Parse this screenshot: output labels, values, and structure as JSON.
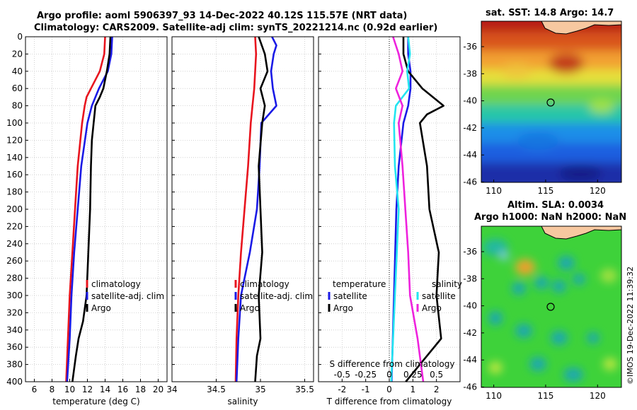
{
  "titles": {
    "line1": "Argo profile: aoml 5906397_93 14-Dec-2022 40.12S 115.57E (NRT data)",
    "line2": "Climatology: CARS2009. Satellite-adj clim: synTS_20221214.nc (0.92d earlier)"
  },
  "maps": {
    "sst_title": "sat. SST: 14.8 Argo: 14.7",
    "sla_title1": "Altim. SLA: 0.0034",
    "sla_title2": "Argo h1000: NaN h2000: NaN",
    "lat_ticks": [
      "-36",
      "-38",
      "-40",
      "-42",
      "-44",
      "-46"
    ],
    "lon_ticks": [
      "110",
      "115",
      "120"
    ]
  },
  "credit": "©IMOS 19-Dec-2022 11:39:32",
  "colors": {
    "climatology": "#e8141e",
    "satellite": "#1a1ae6",
    "argo": "#000000",
    "sat_sal": "#22e5f0",
    "sal_diff": "#ee22dd"
  },
  "chart_data": [
    {
      "type": "line",
      "title": "",
      "xlabel": "temperature (deg C)",
      "ylabel": "",
      "xlim": [
        5,
        21
      ],
      "ylim": [
        400,
        0
      ],
      "xticks": [
        "6",
        "8",
        "10",
        "12",
        "14",
        "16",
        "18",
        "20"
      ],
      "yticks": [
        "0",
        "20",
        "40",
        "60",
        "80",
        "100",
        "120",
        "140",
        "160",
        "180",
        "200",
        "220",
        "240",
        "260",
        "280",
        "300",
        "320",
        "340",
        "360",
        "380",
        "400"
      ],
      "legend": [
        "climatology",
        "satellite-adj. clim",
        "Argo"
      ],
      "series": [
        {
          "name": "climatology",
          "depth": [
            0,
            20,
            40,
            60,
            70,
            80,
            100,
            150,
            200,
            250,
            300,
            350,
            400
          ],
          "values": [
            14.0,
            13.9,
            13.4,
            12.4,
            11.9,
            11.7,
            11.4,
            10.9,
            10.6,
            10.3,
            10.0,
            9.8,
            9.6
          ]
        },
        {
          "name": "satellite-adj. clim",
          "depth": [
            0,
            20,
            40,
            60,
            80,
            100,
            150,
            200,
            250,
            300,
            350,
            400
          ],
          "values": [
            14.8,
            14.7,
            14.3,
            13.3,
            12.5,
            12.0,
            11.3,
            10.9,
            10.5,
            10.2,
            10.0,
            9.7
          ]
        },
        {
          "name": "Argo",
          "depth": [
            0,
            20,
            40,
            60,
            70,
            80,
            100,
            120,
            150,
            200,
            250,
            300,
            330,
            350,
            370,
            400
          ],
          "values": [
            14.6,
            14.5,
            14.2,
            13.8,
            13.4,
            12.9,
            12.7,
            12.5,
            12.4,
            12.3,
            12.1,
            11.9,
            11.5,
            11.0,
            10.7,
            10.3
          ]
        }
      ]
    },
    {
      "type": "line",
      "title": "",
      "xlabel": "salinity",
      "ylabel": "",
      "xlim": [
        34.0,
        35.6
      ],
      "ylim": [
        400,
        0
      ],
      "xticks": [
        "34",
        "34.5",
        "35",
        "35.5"
      ],
      "legend": [
        "climatology",
        "satellite-adj. clim",
        "Argo"
      ],
      "series": [
        {
          "name": "climatology",
          "depth": [
            0,
            20,
            40,
            60,
            80,
            100,
            150,
            200,
            250,
            300,
            350,
            400
          ],
          "values": [
            34.94,
            34.95,
            34.94,
            34.93,
            34.91,
            34.89,
            34.86,
            34.82,
            34.78,
            34.75,
            34.73,
            34.72
          ]
        },
        {
          "name": "satellite-adj. clim",
          "depth": [
            0,
            10,
            20,
            40,
            60,
            80,
            100,
            150,
            200,
            250,
            300,
            350,
            400
          ],
          "values": [
            35.13,
            35.18,
            35.15,
            35.12,
            35.14,
            35.18,
            35.01,
            34.99,
            34.96,
            34.88,
            34.78,
            34.75,
            34.73
          ]
        },
        {
          "name": "Argo",
          "depth": [
            0,
            20,
            40,
            60,
            80,
            100,
            150,
            200,
            250,
            300,
            350,
            370,
            400
          ],
          "values": [
            34.98,
            35.05,
            35.08,
            35.0,
            35.05,
            35.02,
            34.98,
            35.0,
            35.02,
            34.98,
            35.0,
            34.96,
            34.94
          ]
        }
      ]
    },
    {
      "type": "line",
      "title": "",
      "xlabel": "T difference from climatology",
      "x2label": "S difference from climatology",
      "xlim": [
        -3,
        3
      ],
      "ylim": [
        400,
        0
      ],
      "xticks": [
        "-2",
        "-1",
        "0",
        "1",
        "2"
      ],
      "x2lim": [
        -0.75,
        0.75
      ],
      "x2ticks": [
        "-0.5",
        "-0.25",
        "0",
        "0.25",
        "0.5"
      ],
      "legend_temperature": [
        "temperature",
        "satellite",
        "Argo"
      ],
      "legend_salinity": [
        "salinity",
        "satellite",
        "Argo"
      ],
      "series": [
        {
          "name": "T satellite",
          "depth": [
            0,
            20,
            40,
            60,
            80,
            100,
            150,
            200,
            300,
            400
          ],
          "values": [
            0.8,
            0.8,
            0.9,
            0.9,
            0.8,
            0.6,
            0.4,
            0.3,
            0.2,
            0.1
          ]
        },
        {
          "name": "T Argo",
          "depth": [
            0,
            20,
            40,
            60,
            80,
            90,
            100,
            150,
            200,
            250,
            300,
            350,
            400
          ],
          "values": [
            0.6,
            0.6,
            0.8,
            1.4,
            2.3,
            1.6,
            1.3,
            1.6,
            1.7,
            2.1,
            2.0,
            2.2,
            0.7
          ]
        },
        {
          "name": "S satellite",
          "depth": [
            0,
            20,
            40,
            60,
            80,
            100,
            150,
            200,
            300,
            400
          ],
          "values": [
            0.2,
            0.22,
            0.19,
            0.21,
            0.07,
            0.05,
            0.06,
            0.1,
            0.06,
            0.02
          ]
        },
        {
          "name": "S Argo",
          "depth": [
            0,
            20,
            40,
            60,
            80,
            100,
            150,
            200,
            250,
            300,
            350,
            400
          ],
          "values": [
            0.04,
            0.1,
            0.14,
            0.07,
            0.14,
            0.1,
            0.14,
            0.17,
            0.2,
            0.22,
            0.3,
            0.36
          ]
        }
      ]
    }
  ]
}
